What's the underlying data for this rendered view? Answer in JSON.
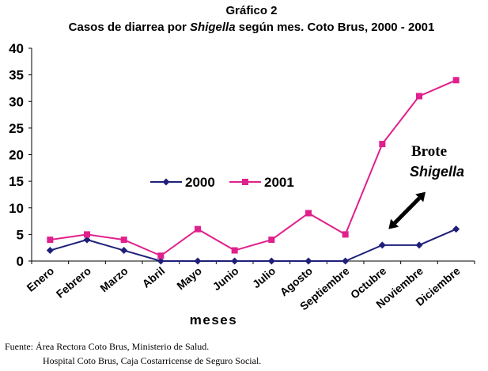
{
  "chart_data": {
    "type": "line",
    "title": "Gráfico 2",
    "subtitle": {
      "before": "Casos de diarrea por ",
      "italic": "Shigella",
      "after": " según mes. Coto Brus, 2000 - 2001"
    },
    "xlabel": "meses",
    "ylabel": "",
    "categories": [
      "Enero",
      "Febrero",
      "Marzo",
      "Abril",
      "Mayo",
      "Junio",
      "Julio",
      "Agosto",
      "Septiembre",
      "Octubre",
      "Noviembre",
      "Diciembre"
    ],
    "ylim": [
      0,
      40
    ],
    "yticks": [
      0,
      5,
      10,
      15,
      20,
      25,
      30,
      35,
      40
    ],
    "grid": false,
    "legend_placement": "center",
    "series": [
      {
        "name": "2000",
        "color": "#1f1f7a",
        "marker": "diamond",
        "values": [
          2,
          4,
          2,
          0,
          0,
          0,
          0,
          0,
          0,
          3,
          3,
          6
        ]
      },
      {
        "name": "2001",
        "color": "#e0208c",
        "marker": "square",
        "values": [
          4,
          5,
          4,
          1,
          6,
          2,
          4,
          9,
          5,
          22,
          31,
          34
        ]
      }
    ],
    "annotation": {
      "line1": "Brote",
      "line2": "Shigella",
      "arrow_from": {
        "category": "Octubre",
        "y": 6
      },
      "arrow_to": {
        "category": "Noviembre",
        "y": 13
      }
    }
  },
  "source": {
    "line1": "Fuente: Área Rectora Coto Brus, Ministerio de Salud.",
    "line2": "Hospital Coto Brus, Caja Costarricense de Seguro Social."
  }
}
